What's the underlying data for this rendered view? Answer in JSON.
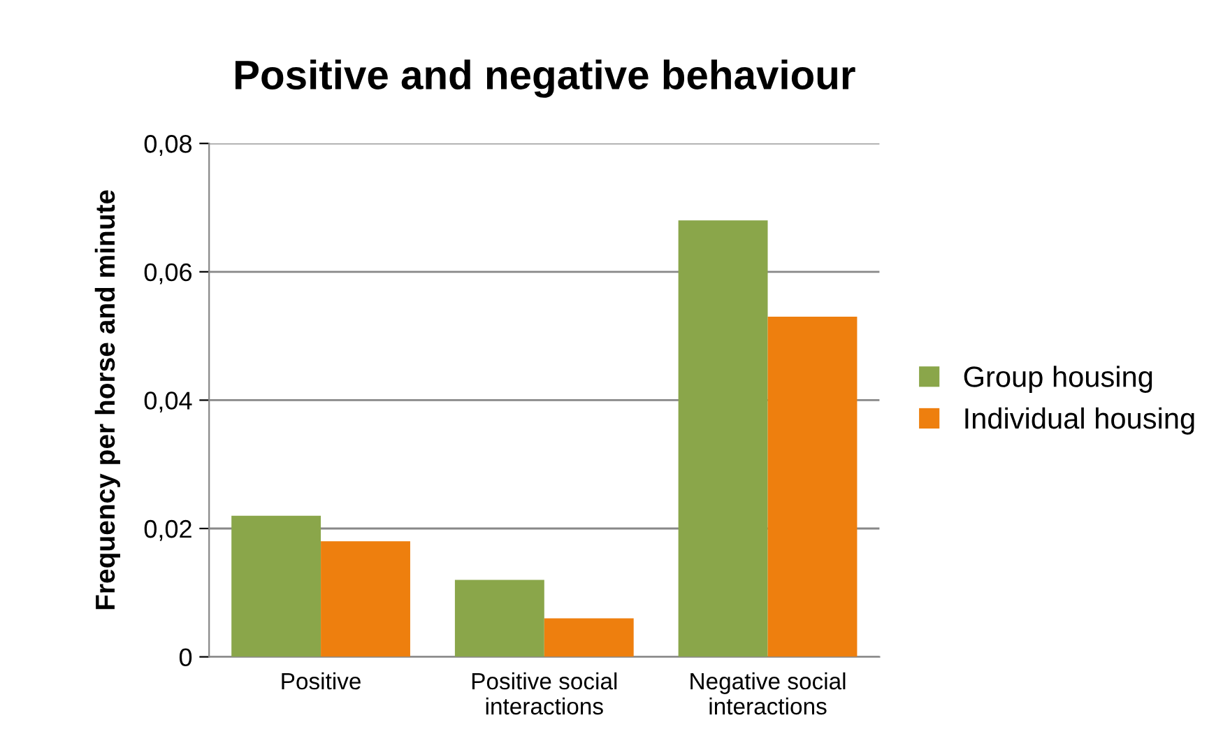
{
  "chart_data": {
    "type": "bar",
    "title": "Positive and negative behaviour",
    "ylabel": "Frequency per horse and minute",
    "categories": [
      "Positive",
      "Positive social\ninteractions",
      "Negative social\ninteractions"
    ],
    "series": [
      {
        "name": "Group housing",
        "color": "#8aa64a",
        "values": [
          0.022,
          0.012,
          0.068
        ]
      },
      {
        "name": "Individual housing",
        "color": "#ee7f0e",
        "values": [
          0.018,
          0.006,
          0.053
        ]
      }
    ],
    "ylim": [
      0,
      0.08
    ],
    "yticks": [
      0,
      {
        "value": 0.02,
        "label": "0,02"
      },
      {
        "value": 0.04,
        "label": "0,04"
      },
      {
        "value": 0.06,
        "label": "0,06"
      },
      {
        "value": 0.08,
        "label": "0,08"
      }
    ],
    "grid": "y",
    "legend": "right"
  }
}
